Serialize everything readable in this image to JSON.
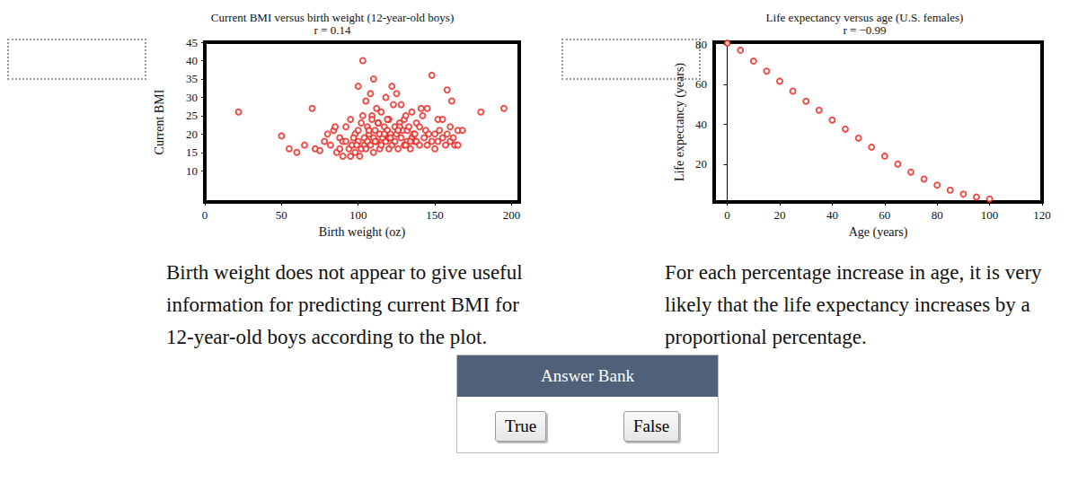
{
  "chart_data": [
    {
      "type": "scatter",
      "title": "Current BMI versus birth weight (12-year-old boys)",
      "subtitle": "r = 0.14",
      "x_label": "Birth weight (oz)",
      "y_label": "Current BMI",
      "color": "#e8251f",
      "marker": "open_circle",
      "grid": false,
      "xlim": [
        0,
        205
      ],
      "xticks": [
        0,
        50,
        100,
        150,
        200
      ],
      "ylim": [
        1.5,
        45
      ],
      "yticks": [
        10,
        15,
        20,
        25,
        30,
        35,
        40,
        45
      ],
      "x": [
        22,
        50,
        55,
        60,
        65,
        70,
        72,
        75,
        78,
        80,
        82,
        84,
        85,
        86,
        88,
        88,
        90,
        90,
        92,
        92,
        94,
        95,
        95,
        96,
        98,
        98,
        100,
        100,
        100,
        101,
        102,
        102,
        103,
        104,
        104,
        105,
        105,
        106,
        106,
        107,
        108,
        108,
        109,
        110,
        110,
        110,
        111,
        112,
        112,
        113,
        114,
        114,
        115,
        115,
        116,
        117,
        118,
        118,
        119,
        120,
        120,
        120,
        121,
        122,
        122,
        123,
        124,
        124,
        125,
        125,
        126,
        127,
        128,
        128,
        129,
        130,
        130,
        131,
        132,
        132,
        133,
        134,
        135,
        135,
        136,
        137,
        138,
        138,
        140,
        140,
        141,
        142,
        143,
        144,
        145,
        145,
        146,
        148,
        148,
        150,
        150,
        152,
        152,
        153,
        155,
        155,
        157,
        158,
        158,
        160,
        160,
        161,
        162,
        163,
        165,
        165,
        168,
        180,
        195,
        97,
        99,
        103,
        107,
        111,
        117,
        121,
        127,
        131,
        137,
        113,
        119,
        126,
        134,
        109
      ],
      "y": [
        26,
        19.5,
        16,
        15,
        17,
        27,
        16,
        15.5,
        18,
        20,
        17,
        21,
        22,
        15,
        16,
        19,
        14,
        18,
        18,
        22,
        16,
        14,
        24,
        17,
        20,
        15,
        33,
        18,
        21,
        14,
        16,
        23,
        40,
        19,
        17,
        29,
        16,
        22,
        18,
        20,
        31,
        17,
        25,
        35,
        19,
        15,
        21,
        27,
        18,
        23,
        16,
        20,
        26,
        17,
        19,
        22,
        30,
        18,
        21,
        24,
        16,
        19,
        20,
        33,
        17,
        28,
        22,
        18,
        31,
        20,
        16,
        23,
        28,
        19,
        21,
        24,
        17,
        25,
        21,
        18,
        22,
        16,
        19,
        26,
        20,
        18,
        18,
        23,
        22,
        17,
        27,
        25,
        19,
        21,
        27,
        17,
        20,
        36,
        18,
        20,
        16,
        18,
        24,
        21,
        24,
        19,
        17,
        32,
        20,
        22,
        18,
        29,
        19,
        17,
        17,
        21,
        21,
        26,
        27,
        19,
        17,
        25,
        21,
        18,
        20,
        19,
        22,
        17,
        20,
        23,
        24,
        21,
        18,
        24
      ]
    },
    {
      "type": "scatter",
      "title": "Life expectancy versus age (U.S. females)",
      "subtitle": "r = −0.99",
      "x_label": "Age (years)",
      "y_label": "Life expectancy (years)",
      "color": "#e8251f",
      "marker": "open_circle",
      "grid": false,
      "xlim": [
        -5,
        120
      ],
      "xticks": [
        0,
        20,
        40,
        60,
        80,
        100,
        120
      ],
      "ylim": [
        1,
        81
      ],
      "yticks": [
        20,
        40,
        60,
        80
      ],
      "x": [
        0,
        5,
        10,
        15,
        20,
        25,
        30,
        35,
        40,
        45,
        50,
        55,
        60,
        65,
        70,
        75,
        80,
        85,
        90,
        95,
        100
      ],
      "y": [
        80.5,
        77,
        71.5,
        66.5,
        61.5,
        56.5,
        51.5,
        47,
        42,
        37.5,
        33,
        28.5,
        24,
        20,
        16,
        12.5,
        9.5,
        7,
        5,
        3.5,
        2.5
      ]
    }
  ],
  "statements": [
    "Birth weight does not appear to give useful information for predicting current BMI for 12-year-old boys according to the plot.",
    "For each percentage increase in age, it is very likely that the life expectancy increases by a proportional percentage."
  ],
  "answer_bank": {
    "title": "Answer Bank",
    "options": [
      "True",
      "False"
    ]
  }
}
